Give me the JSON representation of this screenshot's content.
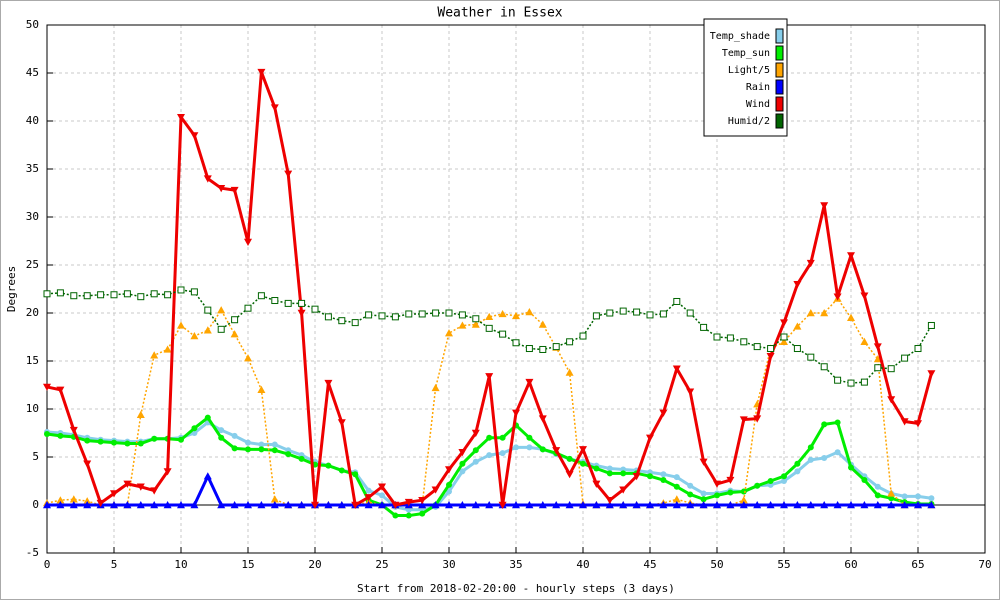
{
  "chart_data": {
    "type": "line",
    "title": "Weather in Essex",
    "x_label": "Start from 2018-02-20:00 - hourly steps (3 days)",
    "y_label": "Degrees",
    "x": [
      0,
      1,
      2,
      3,
      4,
      5,
      6,
      7,
      8,
      9,
      10,
      11,
      12,
      13,
      14,
      15,
      16,
      17,
      18,
      19,
      20,
      21,
      22,
      23,
      24,
      25,
      26,
      27,
      28,
      29,
      30,
      31,
      32,
      33,
      34,
      35,
      36,
      37,
      38,
      39,
      40,
      41,
      42,
      43,
      44,
      45,
      46,
      47,
      48,
      49,
      50,
      51,
      52,
      53,
      54,
      55,
      56,
      57,
      58,
      59,
      60,
      61,
      62,
      63,
      64,
      65,
      66
    ],
    "xlim": [
      0,
      70
    ],
    "xticks": [
      0,
      5,
      10,
      15,
      20,
      25,
      30,
      35,
      40,
      45,
      50,
      55,
      60,
      65,
      70
    ],
    "ylim": [
      -5,
      50
    ],
    "yticks": [
      -5,
      0,
      5,
      10,
      15,
      20,
      25,
      30,
      35,
      40,
      45,
      50
    ],
    "grid": true,
    "legend": "top-right",
    "series": [
      {
        "name": "Temp_shade",
        "color": "#87ceeb",
        "marker": "circle",
        "dashed": false,
        "values": [
          7.6,
          7.5,
          7.3,
          7,
          6.8,
          6.7,
          6.6,
          6.6,
          6.9,
          6.9,
          7,
          7.5,
          8.6,
          7.8,
          7.2,
          6.5,
          6.3,
          6.3,
          5.7,
          5.2,
          4.5,
          4.1,
          3.6,
          3.4,
          1.5,
          1,
          -0.2,
          -0.5,
          -0.5,
          -0.2,
          1.4,
          3.5,
          4.5,
          5.2,
          5.4,
          6,
          6,
          5.8,
          5.3,
          4.8,
          4.5,
          4.1,
          3.8,
          3.7,
          3.6,
          3.4,
          3.2,
          2.9,
          2,
          1.2,
          1.2,
          1.5,
          1.4,
          2,
          2.1,
          2.5,
          3.5,
          4.7,
          4.9,
          5.5,
          4.2,
          3,
          1.9,
          1.2,
          0.9,
          0.9,
          0.7
        ]
      },
      {
        "name": "Temp_sun",
        "color": "#00ee00",
        "marker": "circle",
        "dashed": false,
        "values": [
          7.4,
          7.2,
          7.1,
          6.7,
          6.6,
          6.5,
          6.4,
          6.4,
          6.9,
          6.9,
          6.8,
          8,
          9.1,
          7,
          5.9,
          5.8,
          5.8,
          5.7,
          5.3,
          4.8,
          4.2,
          4.1,
          3.6,
          3.2,
          0.5,
          0,
          -1.1,
          -1.1,
          -0.9,
          0,
          2.1,
          4.3,
          5.7,
          7,
          7,
          8.3,
          7,
          5.8,
          5.4,
          4.8,
          4.3,
          3.8,
          3.3,
          3.3,
          3.3,
          3,
          2.6,
          1.9,
          1.1,
          0.6,
          1,
          1.3,
          1.4,
          2,
          2.5,
          3,
          4.3,
          6,
          8.4,
          8.6,
          3.9,
          2.6,
          1,
          0.7,
          0.3,
          0.1,
          0.1
        ]
      },
      {
        "name": "Light/5",
        "color": "#ffa500",
        "marker": "triangle-up",
        "dashed": true,
        "values": [
          0.2,
          0.5,
          0.6,
          0.4,
          0,
          0,
          0,
          9.4,
          15.6,
          16.2,
          18.7,
          17.6,
          18.2,
          20.3,
          17.8,
          15.3,
          12,
          0.6,
          0,
          0,
          0,
          0,
          0,
          0,
          0.3,
          0,
          0,
          0,
          0,
          12.2,
          17.9,
          18.7,
          18.8,
          19.6,
          19.9,
          19.7,
          20.1,
          18.8,
          16.4,
          13.8,
          0.1,
          0,
          0,
          0,
          0,
          0,
          0.2,
          0.6,
          0.2,
          0,
          0,
          0,
          0.5,
          10.5,
          16.3,
          17,
          18.6,
          20,
          20,
          21.5,
          19.5,
          17,
          15.2,
          1.2,
          0,
          0,
          0
        ]
      },
      {
        "name": "Rain",
        "color": "#0000ff",
        "marker": "triangle-up",
        "dashed": false,
        "values": [
          0,
          0,
          0,
          0,
          0,
          0,
          0,
          0,
          0,
          0,
          0,
          0,
          3,
          0,
          0,
          0,
          0,
          0,
          0,
          0,
          0,
          0,
          0,
          0,
          0,
          0,
          0,
          0,
          0,
          0,
          0,
          0,
          0,
          0,
          0,
          0,
          0,
          0,
          0,
          0,
          0,
          0,
          0,
          0,
          0,
          0,
          0,
          0,
          0,
          0,
          0,
          0,
          0,
          0,
          0,
          0,
          0,
          0,
          0,
          0,
          0,
          0,
          0,
          0,
          0,
          0,
          0
        ]
      },
      {
        "name": "Wind",
        "color": "#ee0000",
        "marker": "triangle-down",
        "dashed": false,
        "values": [
          12.3,
          12,
          7.8,
          4.3,
          0.2,
          1.2,
          2.2,
          1.9,
          1.5,
          3.5,
          40.4,
          38.5,
          34,
          33,
          32.8,
          27.4,
          45.1,
          41.4,
          34.5,
          20,
          0,
          12.7,
          8.6,
          0,
          0.8,
          1.9,
          0,
          0.3,
          0.5,
          1.6,
          3.7,
          5.5,
          7.5,
          13.4,
          0,
          9.6,
          12.8,
          9,
          5.7,
          3.2,
          5.8,
          2.2,
          0.5,
          1.6,
          3,
          7,
          9.6,
          14.2,
          11.8,
          4.5,
          2.2,
          2.6,
          8.9,
          9,
          15.5,
          19,
          23,
          25.2,
          31.2,
          21.7,
          26,
          21.8,
          16.5,
          11,
          8.7,
          8.5,
          13.7
        ]
      },
      {
        "name": "Humid/2",
        "color": "#006400",
        "marker": "square-open",
        "dashed": true,
        "values": [
          22,
          22.1,
          21.8,
          21.8,
          21.9,
          21.9,
          22,
          21.7,
          22,
          21.9,
          22.4,
          22.2,
          20.3,
          18.3,
          19.3,
          20.5,
          21.8,
          21.3,
          21,
          21,
          20.4,
          19.6,
          19.2,
          19,
          19.8,
          19.7,
          19.6,
          19.9,
          19.9,
          20,
          20,
          19.8,
          19.4,
          18.4,
          17.8,
          16.9,
          16.3,
          16.2,
          16.5,
          17,
          17.6,
          19.7,
          20,
          20.2,
          20.1,
          19.8,
          19.9,
          21.2,
          20,
          18.5,
          17.5,
          17.4,
          17,
          16.5,
          16.3,
          17.5,
          16.3,
          15.4,
          14.4,
          13,
          12.7,
          12.8,
          14.3,
          14.2,
          15.3,
          16.3,
          18.7
        ]
      }
    ]
  }
}
